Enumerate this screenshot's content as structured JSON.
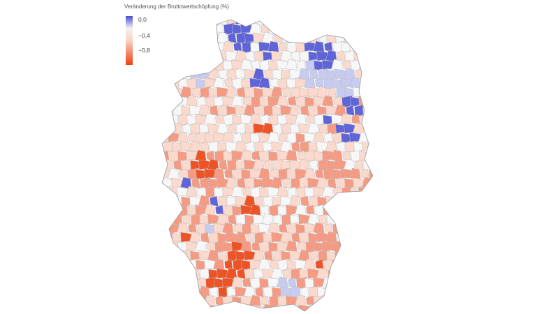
{
  "legend": {
    "title": "Veränderung der Bruttowertschöpfung (%)",
    "ticks": [
      "0,0",
      "−0,4",
      "−0,8"
    ],
    "scale": {
      "colors": [
        "#4b4bd4",
        "#f2f2f2",
        "#fcd3c2",
        "#f4876b",
        "#ee4311"
      ]
    }
  },
  "colors": {
    "positive": "#5f64d9",
    "light_blue": "#c7cbef",
    "neutral": "#f7f7f7",
    "pale_red": "#fbd9cd",
    "mid_red": "#f59a83",
    "strong_red": "#ee5326",
    "border": "#bdbdbd"
  },
  "map": {
    "region": "Deutschland, Kreise"
  }
}
